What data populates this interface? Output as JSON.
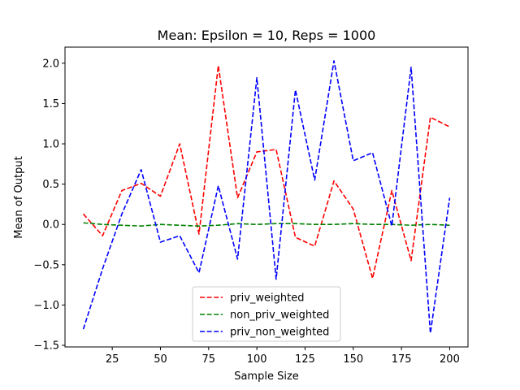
{
  "chart_data": {
    "type": "line",
    "title": "Mean: Epsilon = 10, Reps = 1000",
    "xlabel": "Sample Size",
    "ylabel": "Mean of Output",
    "xlim": [
      0.5,
      209.5
    ],
    "ylim": [
      -1.52,
      2.2
    ],
    "xticks": [
      25,
      50,
      75,
      100,
      125,
      150,
      175,
      200
    ],
    "xtick_labels": [
      "25",
      "50",
      "75",
      "100",
      "125",
      "150",
      "175",
      "200"
    ],
    "yticks": [
      -1.5,
      -1.0,
      -0.5,
      0.0,
      0.5,
      1.0,
      1.5,
      2.0
    ],
    "ytick_labels": [
      "−1.5",
      "−1.0",
      "−0.5",
      "0.0",
      "0.5",
      "1.0",
      "1.5",
      "2.0"
    ],
    "grid": false,
    "legend_position": "bottom-center",
    "x": [
      10,
      20,
      30,
      40,
      50,
      60,
      70,
      80,
      90,
      100,
      110,
      120,
      130,
      140,
      150,
      160,
      170,
      180,
      190,
      200
    ],
    "series": [
      {
        "name": "priv_weighted",
        "color": "#ff0000",
        "values": [
          0.13,
          -0.14,
          0.42,
          0.51,
          0.35,
          1.0,
          -0.12,
          1.97,
          0.33,
          0.9,
          0.93,
          -0.16,
          -0.27,
          0.54,
          0.19,
          -0.67,
          0.42,
          -0.45,
          1.33,
          1.21
        ]
      },
      {
        "name": "non_priv_weighted",
        "color": "#008000",
        "values": [
          0.02,
          0.0,
          -0.01,
          -0.02,
          0.0,
          -0.01,
          -0.02,
          -0.01,
          0.01,
          0.0,
          0.01,
          0.01,
          0.0,
          0.0,
          0.01,
          0.0,
          0.0,
          -0.01,
          0.0,
          -0.01
        ]
      },
      {
        "name": "priv_non_weighted",
        "color": "#0000ff",
        "values": [
          -1.3,
          -0.55,
          0.13,
          0.68,
          -0.22,
          -0.14,
          -0.6,
          0.48,
          -0.43,
          1.82,
          -0.68,
          1.67,
          0.55,
          2.03,
          0.79,
          0.89,
          -0.02,
          1.95,
          -1.35,
          0.33
        ]
      }
    ]
  }
}
